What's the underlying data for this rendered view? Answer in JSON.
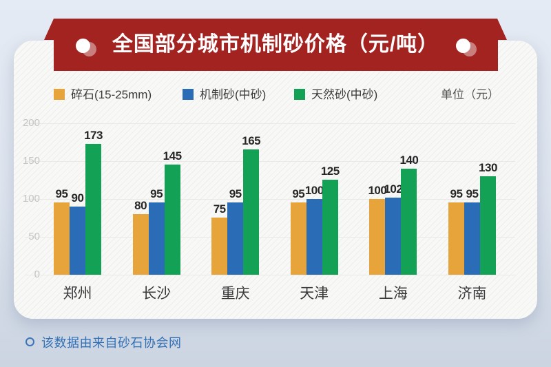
{
  "banner": {
    "title": "全国部分城市机制砂价格（元/吨）",
    "ribbon_color": "#a32321"
  },
  "legend": {
    "items": [
      {
        "label": "碎石(15-25mm)",
        "color": "#e7a43b"
      },
      {
        "label": "机制砂(中砂)",
        "color": "#2a6cb5"
      },
      {
        "label": "天然砂(中砂)",
        "color": "#13a155"
      }
    ],
    "unit_label": "单位（元）"
  },
  "chart_data": {
    "type": "bar",
    "title": "全国部分城市机制砂价格（元/吨）",
    "categories": [
      "郑州",
      "长沙",
      "重庆",
      "天津",
      "上海",
      "济南"
    ],
    "series": [
      {
        "name": "碎石(15-25mm)",
        "color": "#e7a43b",
        "values": [
          95,
          80,
          75,
          95,
          100,
          95
        ]
      },
      {
        "name": "机制砂(中砂)",
        "color": "#2a6cb5",
        "values": [
          90,
          95,
          95,
          100,
          102,
          95
        ]
      },
      {
        "name": "天然砂(中砂)",
        "color": "#13a155",
        "values": [
          173,
          145,
          165,
          125,
          140,
          130
        ]
      }
    ],
    "xlabel": "",
    "ylabel": "",
    "ylim": [
      0,
      200
    ],
    "yticks": [
      0,
      50,
      100,
      150,
      200
    ],
    "grid": true,
    "legend_position": "top",
    "value_labels": true
  },
  "footer": {
    "note": "该数据由来自砂石协会网"
  }
}
